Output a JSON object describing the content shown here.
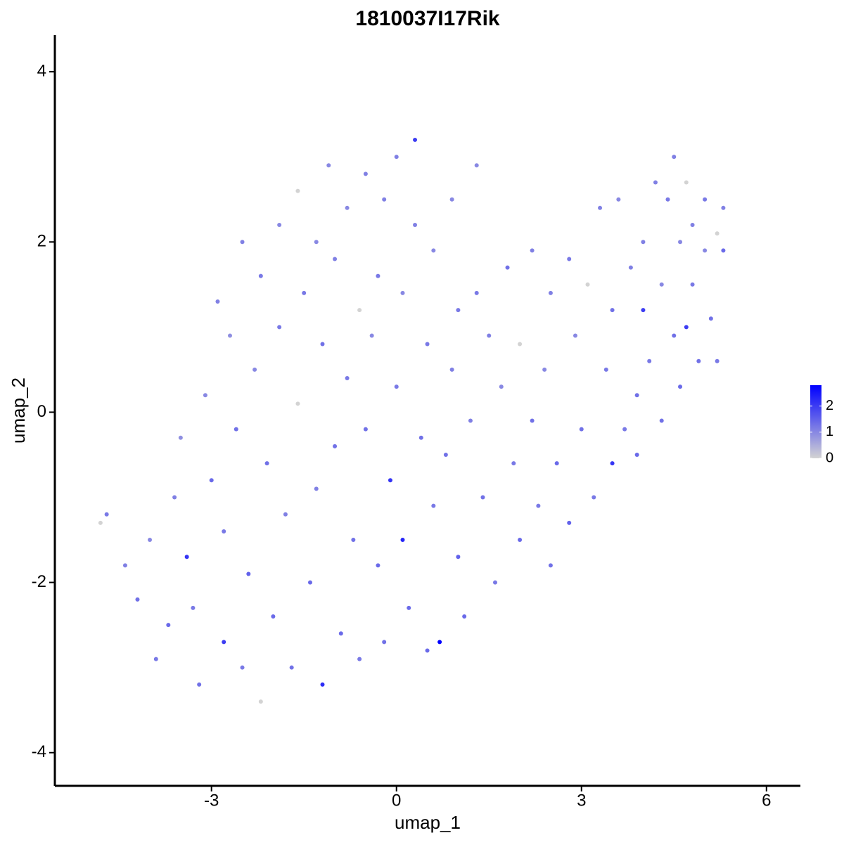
{
  "chart_data": {
    "type": "scatter",
    "title": "1810037I17Rik",
    "x_label": "umap_1",
    "y_label": "umap_2",
    "x": [
      -4.8,
      -4.7,
      -4.4,
      -4.2,
      -4.0,
      -3.9,
      -3.7,
      -3.6,
      -3.5,
      -3.4,
      -3.3,
      -3.2,
      -3.1,
      -3.0,
      -2.9,
      -2.8,
      -2.8,
      -2.7,
      -2.6,
      -2.5,
      -2.5,
      -2.4,
      -2.3,
      -2.2,
      -2.2,
      -2.1,
      -2.0,
      -1.9,
      -1.9,
      -1.8,
      -1.7,
      -1.6,
      -1.6,
      -1.5,
      -1.4,
      -1.3,
      -1.3,
      -1.2,
      -1.2,
      -1.1,
      -1.0,
      -1.0,
      -0.9,
      -0.8,
      -0.8,
      -0.7,
      -0.6,
      -0.6,
      -0.5,
      -0.5,
      -0.4,
      -0.3,
      -0.3,
      -0.2,
      -0.2,
      -0.1,
      0.0,
      0.0,
      0.1,
      0.1,
      0.2,
      0.3,
      0.3,
      0.4,
      0.5,
      0.5,
      0.6,
      0.6,
      0.7,
      0.8,
      0.9,
      0.9,
      1.0,
      1.0,
      1.1,
      1.2,
      1.3,
      1.3,
      1.4,
      1.5,
      1.6,
      1.7,
      1.8,
      1.9,
      2.0,
      2.0,
      2.2,
      2.2,
      2.3,
      2.4,
      2.5,
      2.5,
      2.6,
      2.8,
      2.8,
      2.9,
      3.0,
      3.1,
      3.2,
      3.3,
      3.4,
      3.5,
      3.5,
      3.6,
      3.7,
      3.8,
      3.9,
      3.9,
      4.0,
      4.0,
      4.1,
      4.2,
      4.3,
      4.3,
      4.4,
      4.5,
      4.5,
      4.6,
      4.6,
      4.7,
      4.7,
      4.8,
      4.8,
      4.9,
      5.0,
      5.0,
      5.1,
      5.2,
      5.3,
      5.3,
      5.2
    ],
    "y": [
      -1.3,
      -1.2,
      -1.8,
      -2.2,
      -1.5,
      -2.9,
      -2.5,
      -1.0,
      -0.3,
      -1.7,
      -2.3,
      -3.2,
      0.2,
      -0.8,
      1.3,
      -1.4,
      -2.7,
      0.9,
      -0.2,
      2.0,
      -3.0,
      -1.9,
      0.5,
      1.6,
      -3.4,
      -0.6,
      -2.4,
      2.2,
      1.0,
      -1.2,
      -3.0,
      0.1,
      2.6,
      1.4,
      -2.0,
      -0.9,
      2.0,
      0.8,
      -3.2,
      2.9,
      -0.4,
      1.8,
      -2.6,
      0.4,
      2.4,
      -1.5,
      1.2,
      -2.9,
      2.8,
      -0.2,
      0.9,
      -1.8,
      1.6,
      2.5,
      -2.7,
      -0.8,
      0.3,
      3.0,
      1.4,
      -1.5,
      -2.3,
      3.2,
      2.2,
      -0.3,
      0.8,
      -2.8,
      1.9,
      -1.1,
      -2.7,
      -0.5,
      0.5,
      2.5,
      1.2,
      -1.7,
      -2.4,
      -0.1,
      2.9,
      1.4,
      -1.0,
      0.9,
      -2.0,
      0.3,
      1.7,
      -0.6,
      -1.5,
      0.8,
      1.9,
      -0.1,
      -1.1,
      0.5,
      1.4,
      -1.8,
      -0.6,
      1.8,
      -1.3,
      0.9,
      -0.2,
      1.5,
      -1.0,
      2.4,
      0.5,
      -0.6,
      1.2,
      2.5,
      -0.2,
      1.7,
      0.2,
      -0.5,
      2.0,
      1.2,
      0.6,
      2.7,
      -0.1,
      1.5,
      2.5,
      3.0,
      0.9,
      2.0,
      0.3,
      1.0,
      2.7,
      1.5,
      2.2,
      0.6,
      1.9,
      2.5,
      1.1,
      2.1,
      2.4,
      1.9,
      0.6
    ],
    "values": [
      0,
      1.2,
      1.1,
      1.3,
      1.0,
      1.2,
      1.4,
      1.1,
      0.9,
      2.1,
      1.2,
      1.3,
      1.0,
      1.4,
      1.1,
      1.2,
      2.0,
      0.9,
      1.3,
      1.1,
      1.2,
      1.5,
      1.0,
      1.2,
      0,
      1.3,
      1.4,
      1.0,
      1.2,
      1.1,
      1.3,
      0,
      0,
      1.2,
      1.4,
      1.1,
      1.0,
      1.3,
      2.2,
      1.0,
      1.3,
      1.1,
      1.4,
      1.2,
      1.0,
      1.3,
      0,
      1.2,
      1.1,
      1.3,
      1.0,
      1.4,
      1.2,
      1.1,
      1.3,
      2.1,
      1.2,
      1.1,
      1.0,
      2.3,
      1.4,
      2.0,
      1.1,
      1.3,
      1.2,
      1.4,
      1.0,
      1.2,
      2.8,
      1.3,
      1.1,
      1.0,
      1.2,
      1.5,
      1.4,
      1.1,
      1.0,
      1.2,
      1.3,
      1.1,
      1.2,
      1.0,
      1.3,
      1.2,
      1.4,
      0,
      1.1,
      1.3,
      1.2,
      1.0,
      1.1,
      1.3,
      1.4,
      1.2,
      1.5,
      1.0,
      1.3,
      0,
      1.2,
      1.1,
      1.2,
      2.1,
      1.3,
      1.0,
      1.2,
      1.1,
      1.3,
      1.4,
      1.1,
      2.0,
      1.2,
      1.1,
      1.3,
      1.0,
      1.2,
      1.1,
      1.3,
      1.0,
      1.4,
      2.0,
      0,
      1.2,
      1.1,
      1.3,
      1.0,
      1.2,
      1.3,
      0,
      1.1,
      1.4,
      1.2
    ],
    "xlim": [
      -5.54,
      6.55
    ],
    "xticks": [
      -3,
      0,
      3,
      6
    ],
    "ylim": [
      -4.39,
      4.43
    ],
    "yticks": [
      -4,
      -2,
      0,
      2,
      4
    ],
    "color_scale": {
      "low": "#d3d3d3",
      "high": "#0000ff",
      "limits": [
        0,
        2.8
      ],
      "ticks": [
        0,
        1,
        2
      ]
    }
  }
}
